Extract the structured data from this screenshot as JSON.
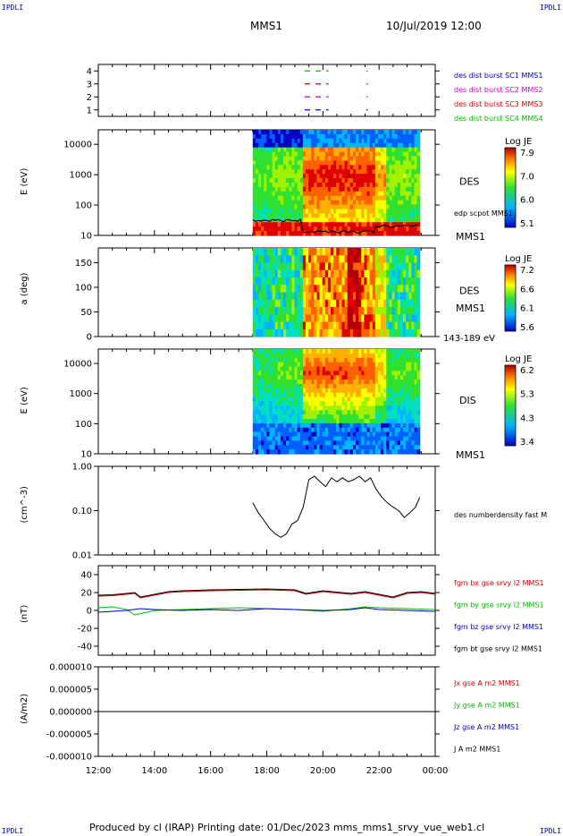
{
  "corner_label": "IPDLI",
  "header": {
    "title": "MMS1",
    "datetime": "10/Jul/2019 12:00"
  },
  "footer": "Produced by cl (IRAP)   Printing date: 01/Dec/2023   mms_mms1_srvy_vue_web1.cl",
  "x_axis": {
    "ticks": [
      "12:00",
      "14:00",
      "16:00",
      "18:00",
      "20:00",
      "22:00",
      "00:00"
    ],
    "range_hours": [
      12,
      24
    ],
    "data_start_hour": 17.5,
    "data_end_hour": 23.45
  },
  "chart_data": [
    {
      "type": "line",
      "id": "burst",
      "yticks": [
        "1",
        "2",
        "3",
        "4"
      ],
      "ylim": [
        0.5,
        4.5
      ],
      "series": [
        {
          "name": "des dist burst SC1 MMS1",
          "color": "#0000cc",
          "y": 1,
          "segments": [
            [
              19.35,
              20.2
            ],
            [
              21.55,
              21.6
            ]
          ]
        },
        {
          "name": "des dist burst SC2 MMS2",
          "color": "#cc00cc",
          "y": 2,
          "segments": [
            [
              19.35,
              20.2
            ],
            [
              21.55,
              21.6
            ]
          ]
        },
        {
          "name": "des dist burst SC3 MMS3",
          "color": "#dd0000",
          "y": 3,
          "segments": [
            [
              19.35,
              20.2
            ],
            [
              21.55,
              21.6
            ]
          ]
        },
        {
          "name": "des dist burst SC4 MMS4",
          "color": "#00bb00",
          "y": 4,
          "segments": [
            [
              19.35,
              20.2
            ],
            [
              21.55,
              21.6
            ]
          ]
        }
      ]
    },
    {
      "type": "heatmap",
      "id": "des_energy",
      "ylabel": "E (eV)",
      "yticks": [
        "10",
        "100",
        "1000",
        "10000"
      ],
      "ylog": true,
      "ylim": [
        10,
        30000
      ],
      "label": "DES",
      "sublabel": "MMS1",
      "overlay_label": "edp scpot MMS1",
      "colorbar": {
        "title": "Log JE",
        "ticks": [
          "7.9",
          "7.0",
          "6.0",
          "5.1"
        ]
      }
    },
    {
      "type": "heatmap",
      "id": "des_pitch",
      "ylabel": "a (deg)",
      "yticks": [
        "0",
        "50",
        "100",
        "150"
      ],
      "ylim": [
        0,
        180
      ],
      "label": "DES",
      "sublabel": "MMS1",
      "energy_range": "143-189 eV",
      "colorbar": {
        "title": "Log JE",
        "ticks": [
          "7.2",
          "6.6",
          "6.1",
          "5.6"
        ]
      }
    },
    {
      "type": "heatmap",
      "id": "dis_energy",
      "ylabel": "E (eV)",
      "yticks": [
        "10",
        "100",
        "1000",
        "10000"
      ],
      "ylog": true,
      "ylim": [
        10,
        30000
      ],
      "label": "DIS",
      "sublabel": "MMS1",
      "colorbar": {
        "title": "Log JE",
        "ticks": [
          "6.2",
          "5.3",
          "4.3",
          "3.4"
        ]
      }
    },
    {
      "type": "line",
      "id": "density",
      "ylabel": "(cm^-3)",
      "yticks": [
        "0.01",
        "0.10",
        "1.00"
      ],
      "ylog": true,
      "ylim": [
        0.01,
        1.0
      ],
      "series": [
        {
          "name": "des numberdensity fast M",
          "color": "#000000",
          "x": [
            17.5,
            17.7,
            17.9,
            18.1,
            18.3,
            18.5,
            18.7,
            18.9,
            19.1,
            19.3,
            19.5,
            19.7,
            19.9,
            20.1,
            20.3,
            20.5,
            20.7,
            20.9,
            21.1,
            21.3,
            21.5,
            21.7,
            21.9,
            22.1,
            22.3,
            22.5,
            22.7,
            22.9,
            23.1,
            23.3,
            23.45
          ],
          "y": [
            0.15,
            0.09,
            0.06,
            0.04,
            0.03,
            0.025,
            0.03,
            0.05,
            0.06,
            0.12,
            0.5,
            0.6,
            0.45,
            0.35,
            0.55,
            0.45,
            0.55,
            0.45,
            0.5,
            0.6,
            0.45,
            0.55,
            0.3,
            0.2,
            0.15,
            0.12,
            0.1,
            0.07,
            0.09,
            0.12,
            0.2
          ]
        }
      ]
    },
    {
      "type": "line",
      "id": "fgm",
      "ylabel": "(nT)",
      "yticks": [
        "-40",
        "-20",
        "0",
        "20",
        "40"
      ],
      "ylim": [
        -50,
        50
      ],
      "series": [
        {
          "name": "fgm bx gse srvy l2 MMS1",
          "color": "#dd0000",
          "x": [
            12,
            12.5,
            13,
            13.3,
            13.5,
            14,
            14.5,
            15,
            16,
            17,
            18,
            19,
            19.4,
            20,
            21,
            21.5,
            22,
            22.5,
            23,
            23.5,
            24
          ],
          "y": [
            16,
            16.5,
            18,
            19,
            14,
            17,
            20,
            21,
            22,
            22.5,
            23,
            22,
            18,
            21,
            18,
            20,
            17,
            14,
            19,
            20,
            18
          ]
        },
        {
          "name": "fgm by gse srvy l2 MMS1",
          "color": "#00bb00",
          "x": [
            12,
            12.5,
            13,
            13.3,
            13.6,
            14,
            15,
            16,
            17,
            18,
            19,
            20,
            21,
            21.5,
            22,
            23,
            24
          ],
          "y": [
            3,
            4,
            1,
            -5,
            -3,
            0,
            1,
            2,
            3,
            2,
            1,
            -1,
            2,
            4,
            3,
            2,
            1
          ]
        },
        {
          "name": "fgm bz gse srvy l2 MMS1",
          "color": "#0000cc",
          "x": [
            12,
            13,
            13.5,
            14,
            15,
            16,
            17,
            18,
            19,
            20,
            21,
            21.5,
            22,
            23,
            24
          ],
          "y": [
            -2,
            0,
            2,
            1,
            0,
            1,
            0,
            2,
            1,
            0,
            1,
            3,
            1,
            0,
            -1
          ]
        },
        {
          "name": "fgm bt gse srvy l2 MMS1",
          "color": "#000000",
          "x": [
            12,
            12.5,
            13,
            13.3,
            13.5,
            14,
            14.5,
            15,
            16,
            17,
            18,
            19,
            19.4,
            20,
            21,
            21.5,
            22,
            22.5,
            23,
            23.5,
            24
          ],
          "y": [
            17,
            17.5,
            19,
            20,
            15,
            18,
            21,
            22,
            23,
            23.5,
            24,
            23,
            19,
            22,
            19,
            21,
            18,
            15,
            20,
            21,
            19
          ]
        }
      ]
    },
    {
      "type": "line",
      "id": "current",
      "ylabel": "(A/m2)",
      "yticks": [
        "-0.000010",
        "-0.000005",
        "0.000000",
        "0.000005",
        "0.000010"
      ],
      "ylim": [
        -1e-05,
        1e-05
      ],
      "series": [
        {
          "name": "Jx gse A m2 MMS1",
          "color": "#dd0000"
        },
        {
          "name": "Jy gse A m2 MMS1",
          "color": "#00bb00"
        },
        {
          "name": "Jz gse A m2 MMS1",
          "color": "#0000cc"
        },
        {
          "name": "J A m2 MMS1",
          "color": "#000000"
        }
      ]
    }
  ]
}
